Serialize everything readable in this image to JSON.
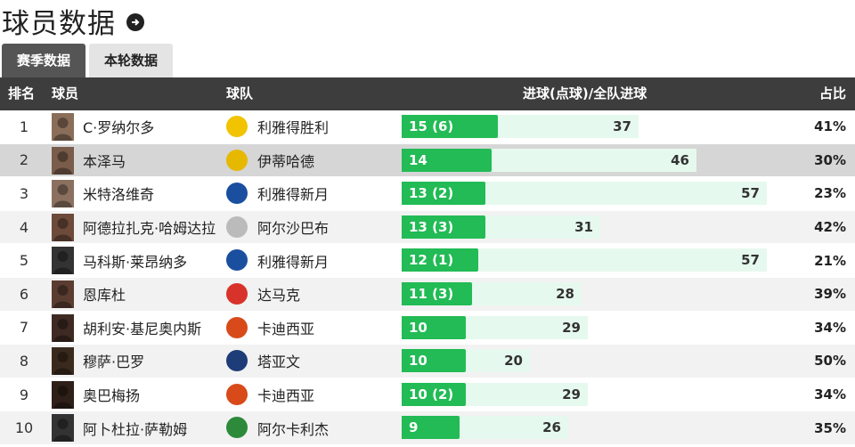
{
  "header": {
    "title": "球员数据",
    "arrow_icon": "circle-arrow-right-icon"
  },
  "tabs": [
    {
      "label": "赛季数据",
      "active": true
    },
    {
      "label": "本轮数据",
      "active": false
    }
  ],
  "columns": {
    "rank": "排名",
    "player": "球员",
    "team": "球队",
    "goals": "进球(点球)/全队进球",
    "ratio": "占比"
  },
  "colors": {
    "goal_bar": "#22bb55",
    "team_bar": "#e6f9ee",
    "header_bg": "#3d3d3d",
    "highlight_row": "#d6d6d6"
  },
  "bar_scale_max": 60,
  "rows": [
    {
      "rank": "1",
      "player": "C·罗纳尔多",
      "team": "利雅得胜利",
      "goals": 15,
      "goals_label": "15 (6)",
      "team_goals": 37,
      "team_goals_label": "37",
      "pct": "41%",
      "badge": "#f2c300",
      "avatar": "#8a6e5a"
    },
    {
      "rank": "2",
      "player": "本泽马",
      "team": "伊蒂哈德",
      "goals": 14,
      "goals_label": "14",
      "team_goals": 46,
      "team_goals_label": "46",
      "pct": "30%",
      "badge": "#e6b800",
      "avatar": "#7a5c4a"
    },
    {
      "rank": "3",
      "player": "米特洛维奇",
      "team": "利雅得新月",
      "goals": 13,
      "goals_label": "13 (2)",
      "team_goals": 57,
      "team_goals_label": "57",
      "pct": "23%",
      "badge": "#1a4fa0",
      "avatar": "#8b7060"
    },
    {
      "rank": "4",
      "player": "阿德拉扎克·哈姆达拉",
      "team": "阿尔沙巴布",
      "goals": 13,
      "goals_label": "13 (3)",
      "team_goals": 31,
      "team_goals_label": "31",
      "pct": "42%",
      "badge": "#bbbbbb",
      "avatar": "#6e4a3a"
    },
    {
      "rank": "5",
      "player": "马科斯·莱昂纳多",
      "team": "利雅得新月",
      "goals": 12,
      "goals_label": "12 (1)",
      "team_goals": 57,
      "team_goals_label": "57",
      "pct": "21%",
      "badge": "#1a4fa0",
      "avatar": "#333333"
    },
    {
      "rank": "6",
      "player": "恩库杜",
      "team": "达马克",
      "goals": 11,
      "goals_label": "11 (3)",
      "team_goals": 28,
      "team_goals_label": "28",
      "pct": "39%",
      "badge": "#d8332a",
      "avatar": "#5a3d30"
    },
    {
      "rank": "7",
      "player": "胡利安·基尼奥内斯",
      "team": "卡迪西亚",
      "goals": 10,
      "goals_label": "10",
      "team_goals": 29,
      "team_goals_label": "29",
      "pct": "34%",
      "badge": "#d84a1a",
      "avatar": "#3e2a22"
    },
    {
      "rank": "8",
      "player": "穆萨·巴罗",
      "team": "塔亚文",
      "goals": 10,
      "goals_label": "10",
      "team_goals": 20,
      "team_goals_label": "20",
      "pct": "50%",
      "badge": "#1e3c78",
      "avatar": "#3a2a1e"
    },
    {
      "rank": "9",
      "player": "奥巴梅扬",
      "team": "卡迪西亚",
      "goals": 10,
      "goals_label": "10 (2)",
      "team_goals": 29,
      "team_goals_label": "29",
      "pct": "34%",
      "badge": "#d84a1a",
      "avatar": "#2e2018"
    },
    {
      "rank": "10",
      "player": "阿卜杜拉·萨勒姆",
      "team": "阿尔卡利杰",
      "goals": 9,
      "goals_label": "9",
      "team_goals": 26,
      "team_goals_label": "26",
      "pct": "35%",
      "badge": "#2d8a3a",
      "avatar": "#333333"
    }
  ]
}
